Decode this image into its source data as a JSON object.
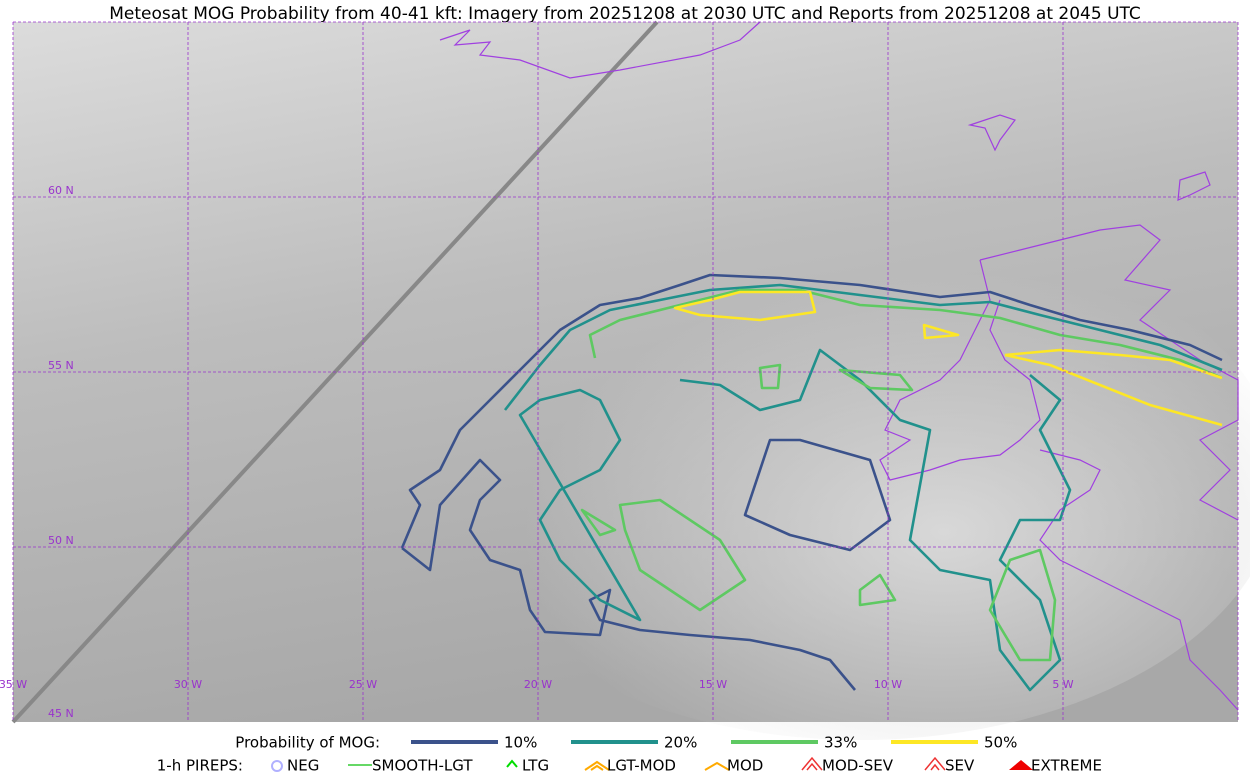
{
  "title": "Meteosat MOG Probability from 40-41 kft: Imagery from 20251208 at 2030 UTC and Reports from 20251208 at 2045 UTC",
  "map": {
    "latitude_labels": [
      "60 N",
      "55 N",
      "50 N",
      "45 N"
    ],
    "longitude_labels": [
      "35 W",
      "30 W",
      "25 W",
      "20 W",
      "15 W",
      "10 W",
      "5 W"
    ]
  },
  "legend": {
    "probability": {
      "label": "Probability of MOG:",
      "entries": [
        {
          "label": "10%",
          "color": "#3b528b"
        },
        {
          "label": "20%",
          "color": "#21918c"
        },
        {
          "label": "33%",
          "color": "#5ec962"
        },
        {
          "label": "50%",
          "color": "#fde725"
        }
      ]
    },
    "pireps": {
      "label": "1-h PIREPS:",
      "entries": [
        {
          "label": "NEG",
          "color": "#b0b0ff"
        },
        {
          "label": "SMOOTH-LGT",
          "color": "#33cc33"
        },
        {
          "label": "LTG",
          "color": "#00dd00"
        },
        {
          "label": "LGT-MOD",
          "color": "#ffaa00"
        },
        {
          "label": "MOD",
          "color": "#ffaa00"
        },
        {
          "label": "MOD-SEV",
          "color": "#ee3333"
        },
        {
          "label": "SEV",
          "color": "#ee3333"
        },
        {
          "label": "EXTREME",
          "color": "#ee0000"
        }
      ]
    }
  }
}
